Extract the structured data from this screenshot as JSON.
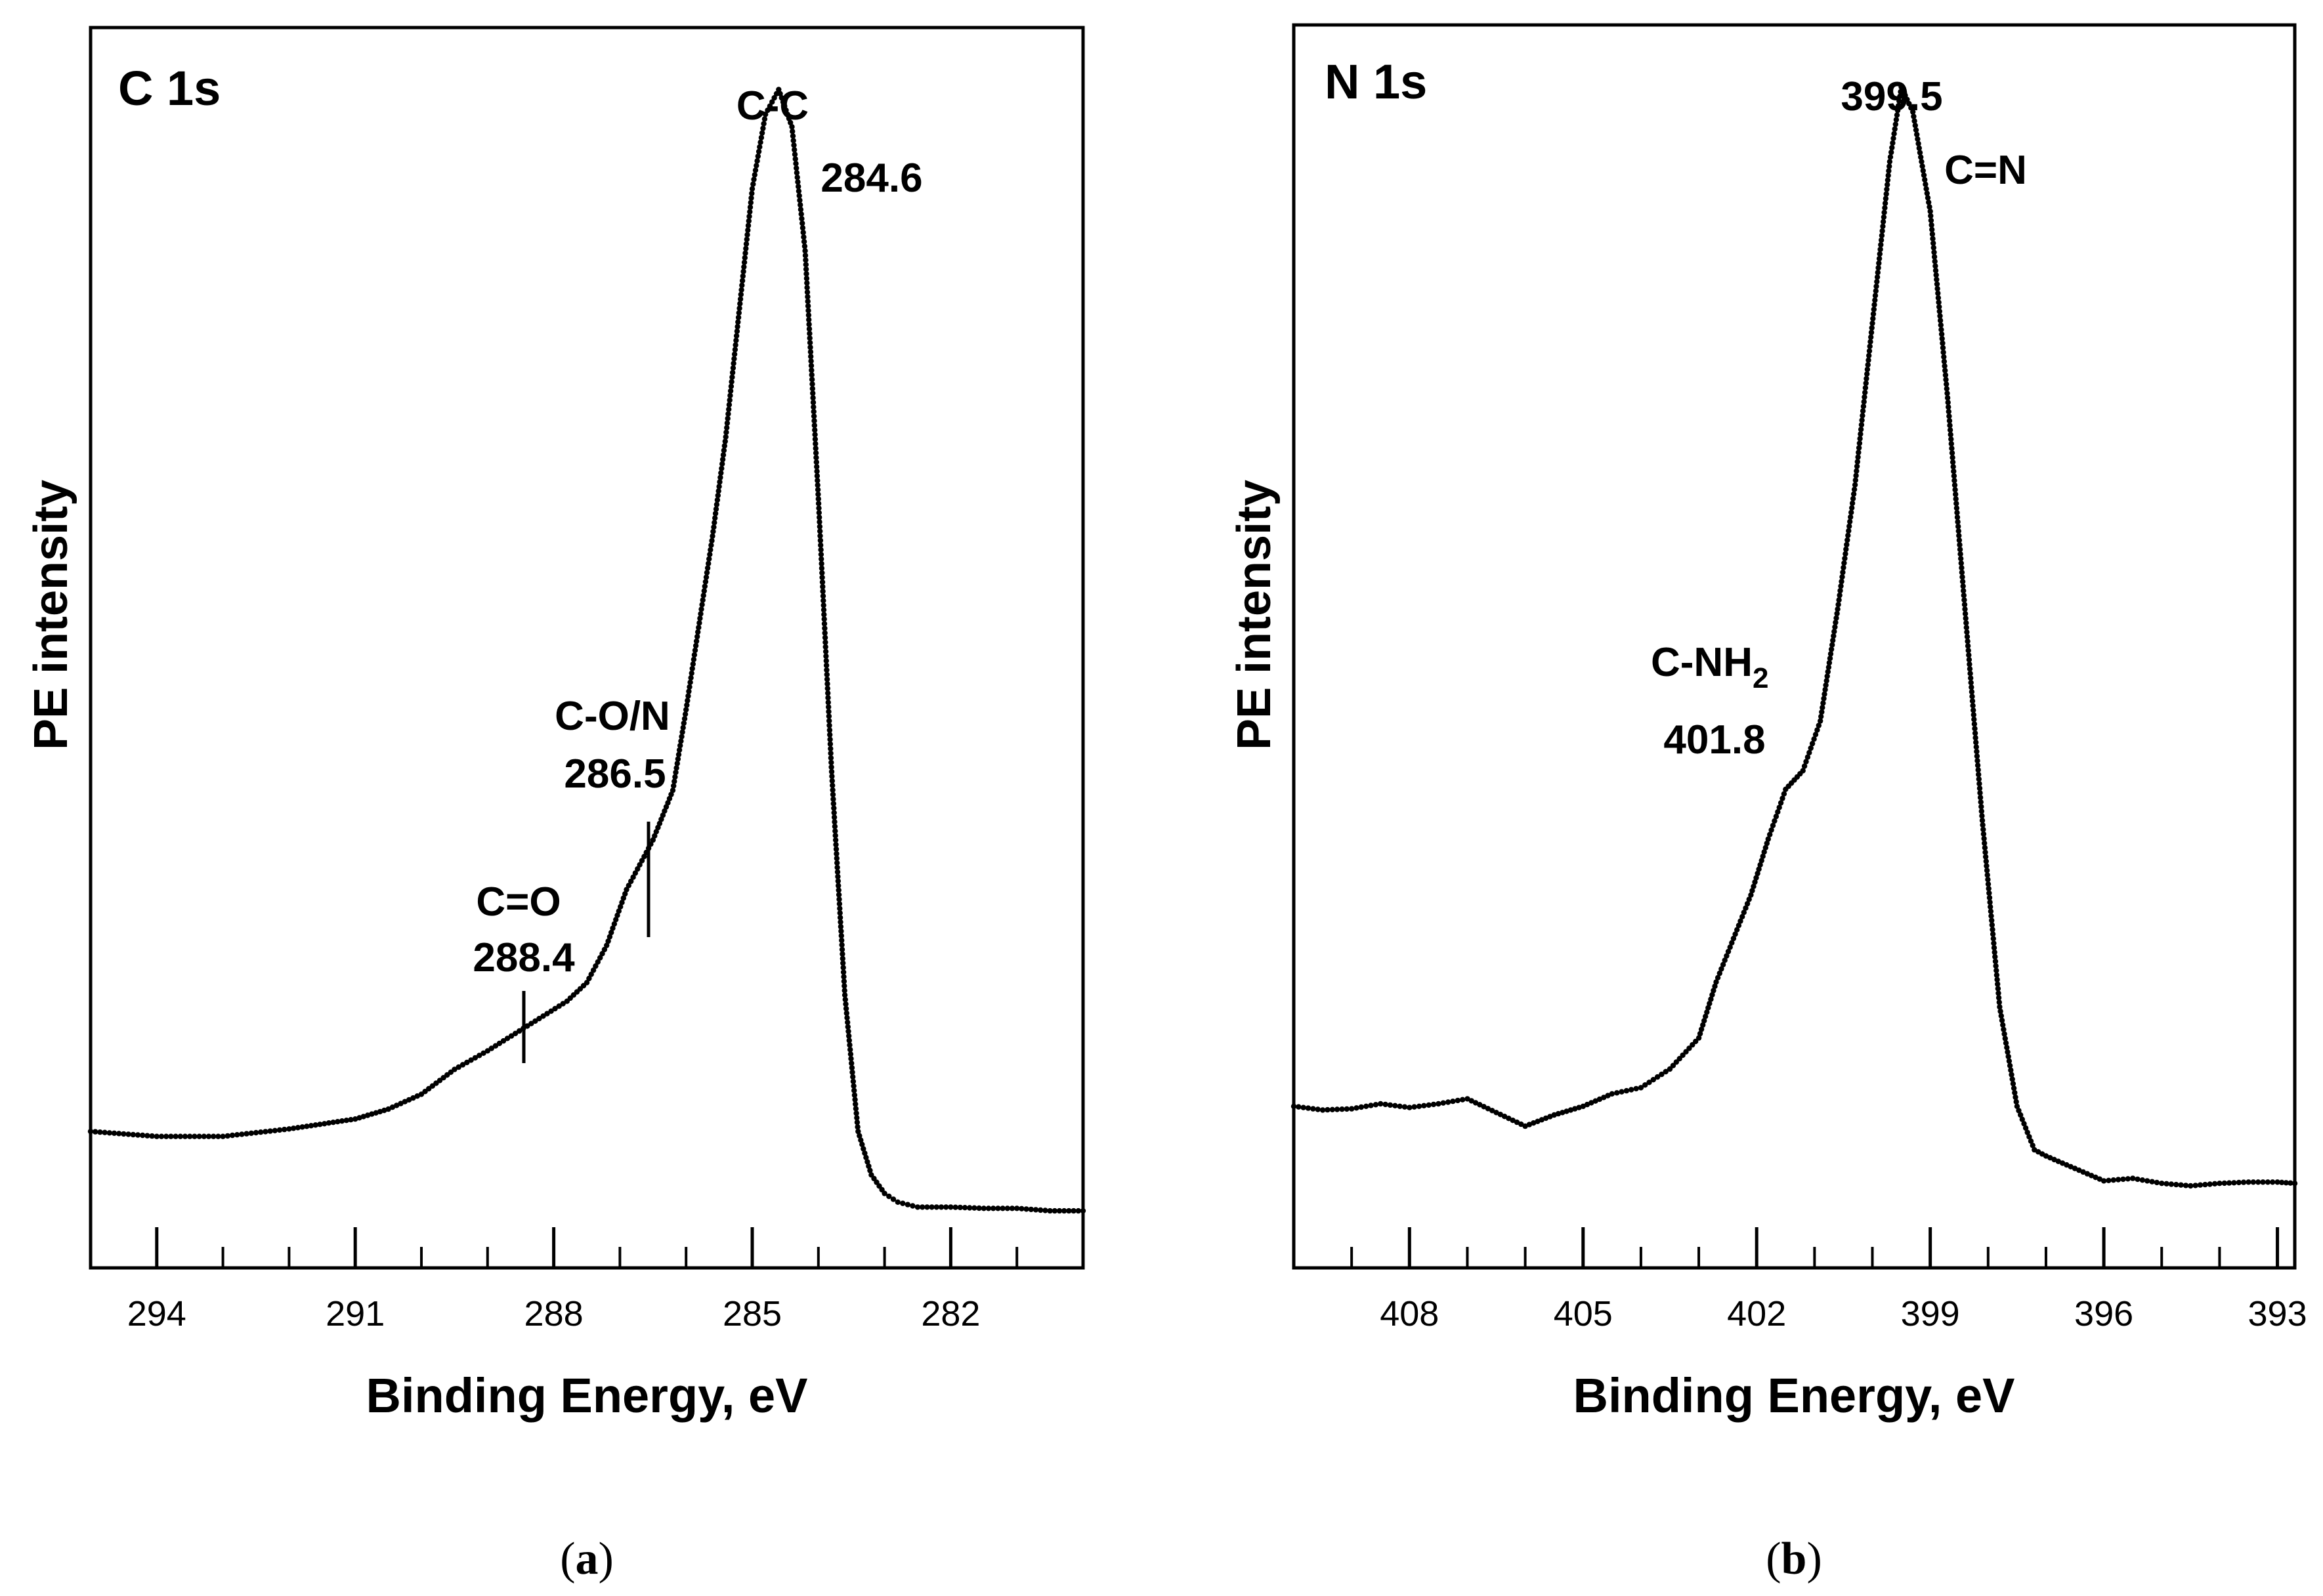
{
  "chart_data": [
    {
      "type": "scatter",
      "panel_title": "C 1s",
      "caption_pre": "(",
      "caption_letter": "a",
      "caption_post": ")",
      "xlabel": "Binding Energy, eV",
      "ylabel": "PE intensity",
      "xlim": [
        295,
        280
      ],
      "ylim": [
        0,
        100
      ],
      "major_ticks": [
        294,
        291,
        288,
        285,
        282
      ],
      "tick_labels": [
        "294",
        "291",
        "288",
        "285",
        "282"
      ],
      "minor_tick_step": 1,
      "series": [
        {
          "name": "C 1s spectrum",
          "points": [
            [
              295,
              11
            ],
            [
              294.5,
              10.8
            ],
            [
              294,
              10.6
            ],
            [
              293,
              10.6
            ],
            [
              292,
              11.2
            ],
            [
              291,
              12
            ],
            [
              290.5,
              12.8
            ],
            [
              290,
              14
            ],
            [
              289.5,
              16
            ],
            [
              289,
              17.5
            ],
            [
              288.4,
              19.5
            ],
            [
              287.8,
              21.5
            ],
            [
              287.5,
              23
            ],
            [
              287.2,
              26
            ],
            [
              286.9,
              30.5
            ],
            [
              286.5,
              34.5
            ],
            [
              286.2,
              38.5
            ],
            [
              286.0,
              45
            ],
            [
              285.8,
              52
            ],
            [
              285.6,
              59
            ],
            [
              285.4,
              67
            ],
            [
              285.2,
              77
            ],
            [
              285.0,
              87
            ],
            [
              284.8,
              93
            ],
            [
              284.6,
              95
            ],
            [
              284.4,
              92
            ],
            [
              284.2,
              82
            ],
            [
              284.0,
              62
            ],
            [
              283.8,
              40
            ],
            [
              283.6,
              22
            ],
            [
              283.4,
              11
            ],
            [
              283.2,
              7.5
            ],
            [
              283.0,
              6
            ],
            [
              282.8,
              5.3
            ],
            [
              282.5,
              4.9
            ],
            [
              282,
              4.9
            ],
            [
              281.5,
              4.8
            ],
            [
              281,
              4.8
            ],
            [
              280.5,
              4.6
            ],
            [
              280,
              4.6
            ]
          ]
        }
      ],
      "annotations": [
        {
          "label": "C-C",
          "value": "284.6",
          "energy": 284.6
        },
        {
          "label": "C-O/N",
          "value": "286.5",
          "energy": 286.5
        },
        {
          "label": "C=O",
          "value": "288.4",
          "energy": 288.4
        }
      ]
    },
    {
      "type": "scatter",
      "panel_title": "N 1s",
      "caption_pre": "(",
      "caption_letter": "b",
      "caption_post": ")",
      "xlabel": "Binding Energy, eV",
      "ylabel": "PE intensity",
      "xlim": [
        410,
        392.7
      ],
      "ylim": [
        0,
        100
      ],
      "major_ticks": [
        408,
        405,
        402,
        399,
        396,
        393
      ],
      "tick_labels": [
        "408",
        "405",
        "402",
        "399",
        "396",
        "393"
      ],
      "minor_tick_step": 1,
      "series": [
        {
          "name": "N 1s spectrum",
          "points": [
            [
              410,
              13
            ],
            [
              409.5,
              12.7
            ],
            [
              409,
              12.8
            ],
            [
              408.5,
              13.2
            ],
            [
              408,
              12.9
            ],
            [
              407.5,
              13.2
            ],
            [
              407,
              13.6
            ],
            [
              406.5,
              12.5
            ],
            [
              406,
              11.4
            ],
            [
              405.5,
              12.3
            ],
            [
              405,
              13
            ],
            [
              404.5,
              14
            ],
            [
              404,
              14.5
            ],
            [
              403.5,
              16
            ],
            [
              403,
              18.5
            ],
            [
              402.7,
              23
            ],
            [
              402.4,
              26.5
            ],
            [
              402.1,
              30
            ],
            [
              401.8,
              34.5
            ],
            [
              401.5,
              38.5
            ],
            [
              401.2,
              40
            ],
            [
              400.9,
              44
            ],
            [
              400.6,
              53
            ],
            [
              400.3,
              63
            ],
            [
              400.0,
              76
            ],
            [
              399.7,
              89
            ],
            [
              399.5,
              95
            ],
            [
              399.3,
              93
            ],
            [
              399.0,
              85
            ],
            [
              398.7,
              70
            ],
            [
              398.4,
              53
            ],
            [
              398.1,
              36
            ],
            [
              397.8,
              21
            ],
            [
              397.5,
              13
            ],
            [
              397.2,
              9.5
            ],
            [
              397,
              9
            ],
            [
              396.5,
              8
            ],
            [
              396,
              7
            ],
            [
              395.5,
              7.2
            ],
            [
              395,
              6.8
            ],
            [
              394.5,
              6.6
            ],
            [
              394,
              6.8
            ],
            [
              393.5,
              6.9
            ],
            [
              393,
              6.9
            ],
            [
              392.7,
              6.8
            ]
          ]
        }
      ],
      "annotations": [
        {
          "label": "399.5",
          "value": "C=N",
          "energy": 399.5
        },
        {
          "label_base": "C-NH",
          "label_sub": "2",
          "value": "401.8",
          "energy": 401.8
        }
      ]
    }
  ]
}
